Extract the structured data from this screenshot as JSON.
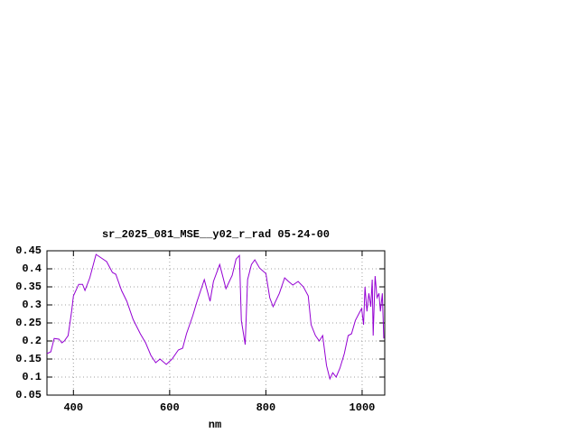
{
  "chart_data": {
    "type": "line",
    "title": "sr_2025_081_MSE__y02_r_rad 05-24-00",
    "xlabel": "nm",
    "x": [
      345,
      353,
      360,
      370,
      376,
      381,
      389,
      396,
      400,
      411,
      419,
      424,
      434,
      447,
      458,
      469,
      481,
      488,
      500,
      511,
      524,
      539,
      550,
      561,
      571,
      580,
      593,
      605,
      618,
      627,
      635,
      648,
      657,
      672,
      684,
      691,
      704,
      717,
      730,
      738,
      745,
      749,
      757,
      762,
      770,
      777,
      787,
      800,
      808,
      815,
      828,
      839,
      847,
      856,
      867,
      878,
      888,
      894,
      903,
      911,
      918,
      926,
      933,
      939,
      946,
      954,
      963,
      971,
      978,
      986,
      993,
      999,
      1003,
      1006,
      1010,
      1014,
      1018,
      1021,
      1023,
      1027,
      1031,
      1035,
      1038,
      1042,
      1045
    ],
    "values": [
      0.165,
      0.17,
      0.207,
      0.205,
      0.195,
      0.2,
      0.215,
      0.28,
      0.325,
      0.357,
      0.357,
      0.34,
      0.375,
      0.44,
      0.43,
      0.42,
      0.39,
      0.385,
      0.34,
      0.31,
      0.26,
      0.22,
      0.195,
      0.16,
      0.14,
      0.15,
      0.135,
      0.15,
      0.175,
      0.18,
      0.22,
      0.27,
      0.31,
      0.37,
      0.31,
      0.365,
      0.412,
      0.345,
      0.382,
      0.427,
      0.437,
      0.257,
      0.19,
      0.37,
      0.412,
      0.425,
      0.402,
      0.387,
      0.32,
      0.295,
      0.332,
      0.375,
      0.365,
      0.355,
      0.365,
      0.35,
      0.325,
      0.245,
      0.215,
      0.2,
      0.215,
      0.132,
      0.095,
      0.112,
      0.1,
      0.125,
      0.165,
      0.215,
      0.22,
      0.257,
      0.275,
      0.29,
      0.245,
      0.35,
      0.282,
      0.332,
      0.295,
      0.37,
      0.215,
      0.38,
      0.32,
      0.332,
      0.282,
      0.332,
      0.207
    ],
    "color": "#9400d3",
    "xlim": [
      345,
      1047
    ],
    "xticks": [
      400,
      600,
      800,
      1000
    ],
    "ylim": [
      0.05,
      0.45
    ],
    "yticks": [
      0.05,
      0.1,
      0.15,
      0.2,
      0.25,
      0.3,
      0.35,
      0.4,
      0.45
    ],
    "grid": true
  }
}
